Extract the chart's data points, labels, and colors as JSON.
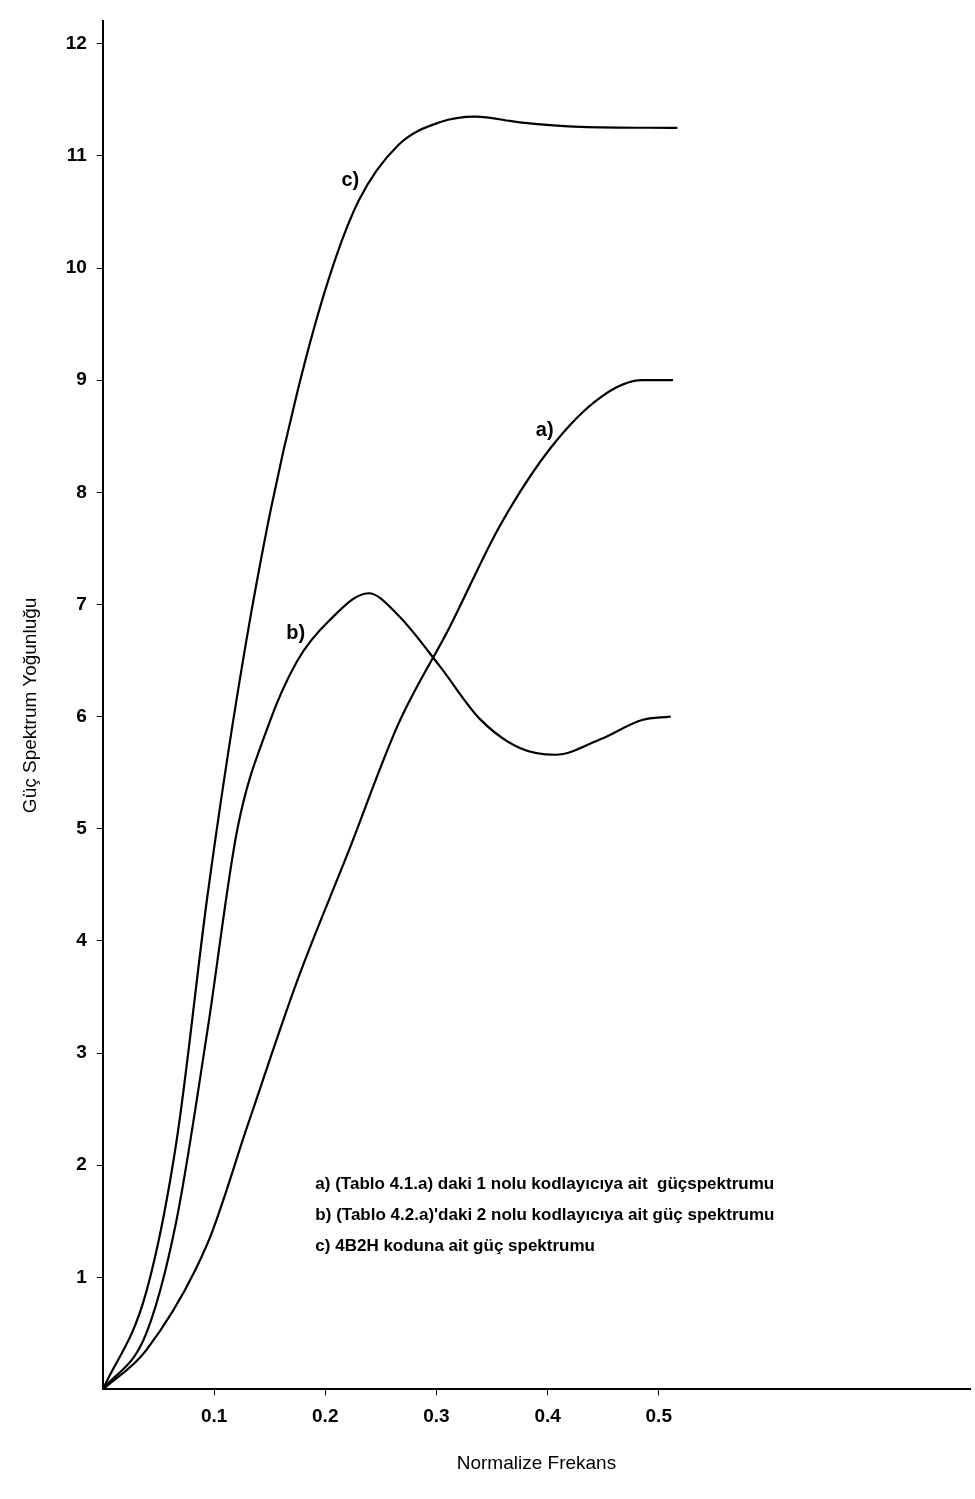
{
  "chart_data": {
    "type": "line",
    "xlabel": "Normalize Frekans",
    "ylabel": "Güç Spektrum Yoğunluğu",
    "xlim": [
      0,
      0.78
    ],
    "ylim": [
      0,
      12.2
    ],
    "xticks": [
      0.1,
      0.2,
      0.3,
      0.4,
      0.5
    ],
    "yticks": [
      1,
      2,
      3,
      4,
      5,
      6,
      7,
      8,
      9,
      10,
      11,
      12
    ],
    "grid": false,
    "legend": false,
    "marker": "none",
    "line_style": "solid",
    "series": [
      {
        "name": "a)",
        "color": "#000000",
        "x": [
          0,
          0.039,
          0.094,
          0.13,
          0.175,
          0.221,
          0.266,
          0.312,
          0.357,
          0.403,
          0.448,
          0.485,
          0.512
        ],
        "values": [
          0,
          0.35,
          1.3,
          2.35,
          3.65,
          4.8,
          5.94,
          6.8,
          7.7,
          8.4,
          8.85,
          9.0,
          9.0
        ]
      },
      {
        "name": "b)",
        "color": "#000000",
        "x": [
          0,
          0.039,
          0.066,
          0.094,
          0.121,
          0.148,
          0.175,
          0.203,
          0.239,
          0.266,
          0.303,
          0.339,
          0.375,
          0.407,
          0.448,
          0.485,
          0.51
        ],
        "values": [
          0,
          0.5,
          1.5,
          3.2,
          5.0,
          5.9,
          6.5,
          6.85,
          7.1,
          6.9,
          6.45,
          5.98,
          5.72,
          5.66,
          5.8,
          5.97,
          6.0
        ]
      },
      {
        "name": "c)",
        "color": "#000000",
        "x": [
          0,
          0.039,
          0.066,
          0.094,
          0.121,
          0.148,
          0.175,
          0.203,
          0.23,
          0.266,
          0.303,
          0.335,
          0.375,
          0.43,
          0.516
        ],
        "values": [
          0,
          0.87,
          2.2,
          4.4,
          6.2,
          7.7,
          8.9,
          9.9,
          10.6,
          11.1,
          11.3,
          11.35,
          11.3,
          11.26,
          11.25
        ]
      }
    ],
    "annotations": [
      "a) (Tablo 4.1.a) daki 1 nolu kodlayıcıya ait  güçspektrumu",
      "b) (Tablo 4.2.a)'daki 2 nolu kodlayıcıya ait güç spektrumu",
      "c) 4B2H koduna ait güç spektrumu"
    ]
  }
}
